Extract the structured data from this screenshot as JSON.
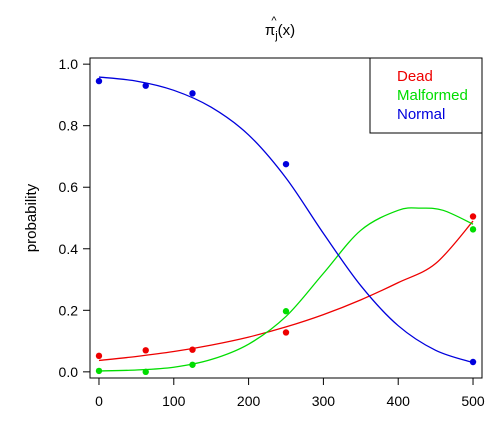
{
  "chart_data": {
    "type": "line",
    "title": "π̂j(x)",
    "title_main": "π",
    "title_hat": "^",
    "title_sub": "j",
    "title_suffix": "(x)",
    "xlabel": "",
    "ylabel": "probability",
    "xlim": [
      -12,
      512
    ],
    "ylim": [
      -0.02,
      1.02
    ],
    "x_ticks": [
      0,
      100,
      200,
      300,
      400,
      500
    ],
    "y_ticks": [
      0.0,
      0.2,
      0.4,
      0.6,
      0.8,
      1.0
    ],
    "x_tick_labels": [
      "0",
      "100",
      "200",
      "300",
      "400",
      "500"
    ],
    "y_tick_labels": [
      "0.0",
      "0.2",
      "0.4",
      "0.6",
      "0.8",
      "1.0"
    ],
    "grid": false,
    "legend_position": "top-right",
    "series": [
      {
        "name": "Dead",
        "color": "#ee0000",
        "points": {
          "x": [
            0,
            62.5,
            125,
            250,
            500
          ],
          "y": [
            0.052,
            0.07,
            0.072,
            0.128,
            0.505
          ]
        },
        "curve": {
          "x": [
            0,
            50,
            100,
            150,
            200,
            250,
            300,
            350,
            400,
            450,
            500
          ],
          "y": [
            0.037,
            0.05,
            0.066,
            0.087,
            0.113,
            0.146,
            0.186,
            0.234,
            0.29,
            0.352,
            0.49
          ]
        }
      },
      {
        "name": "Malformed",
        "color": "#00dd00",
        "points": {
          "x": [
            0,
            62.5,
            125,
            250,
            500
          ],
          "y": [
            0.003,
            0.0,
            0.023,
            0.197,
            0.463
          ]
        },
        "curve": {
          "x": [
            0,
            50,
            100,
            150,
            200,
            250,
            300,
            350,
            400,
            430,
            460,
            500
          ],
          "y": [
            0.003,
            0.006,
            0.015,
            0.04,
            0.09,
            0.18,
            0.32,
            0.46,
            0.525,
            0.532,
            0.525,
            0.48
          ]
        }
      },
      {
        "name": "Normal",
        "color": "#0000dd",
        "points": {
          "x": [
            0,
            62.5,
            125,
            250,
            500
          ],
          "y": [
            0.945,
            0.93,
            0.905,
            0.675,
            0.032
          ]
        },
        "curve": {
          "x": [
            0,
            50,
            100,
            150,
            200,
            250,
            300,
            350,
            400,
            450,
            500
          ],
          "y": [
            0.958,
            0.945,
            0.915,
            0.86,
            0.77,
            0.63,
            0.45,
            0.28,
            0.15,
            0.07,
            0.03
          ]
        }
      }
    ]
  }
}
